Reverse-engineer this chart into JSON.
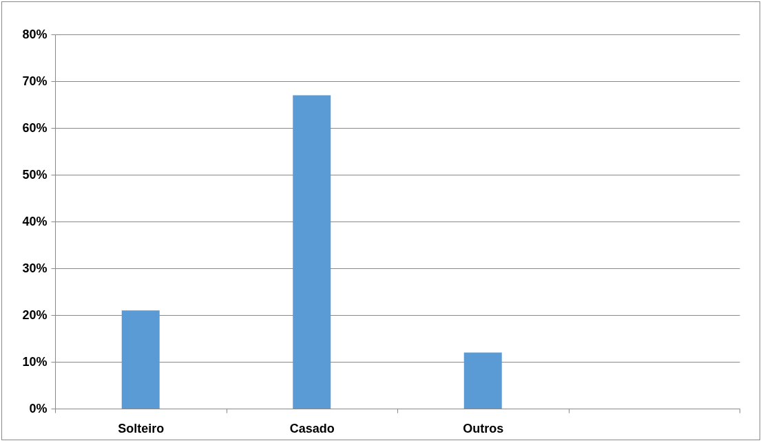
{
  "chart_data": {
    "type": "bar",
    "categories": [
      "Solteiro",
      "Casado",
      "Outros",
      null
    ],
    "values": [
      21,
      67,
      12,
      null
    ],
    "color": "#5b9bd5",
    "ylim": [
      0,
      80
    ],
    "yticks": [
      {
        "value": 0,
        "label": "0%"
      },
      {
        "value": 10,
        "label": "10%"
      },
      {
        "value": 20,
        "label": "20%"
      },
      {
        "value": 30,
        "label": "30%"
      },
      {
        "value": 40,
        "label": "40%"
      },
      {
        "value": 50,
        "label": "50%"
      },
      {
        "value": 60,
        "label": "60%"
      },
      {
        "value": 70,
        "label": "70%"
      },
      {
        "value": 80,
        "label": "80%"
      }
    ],
    "grid": "y"
  }
}
